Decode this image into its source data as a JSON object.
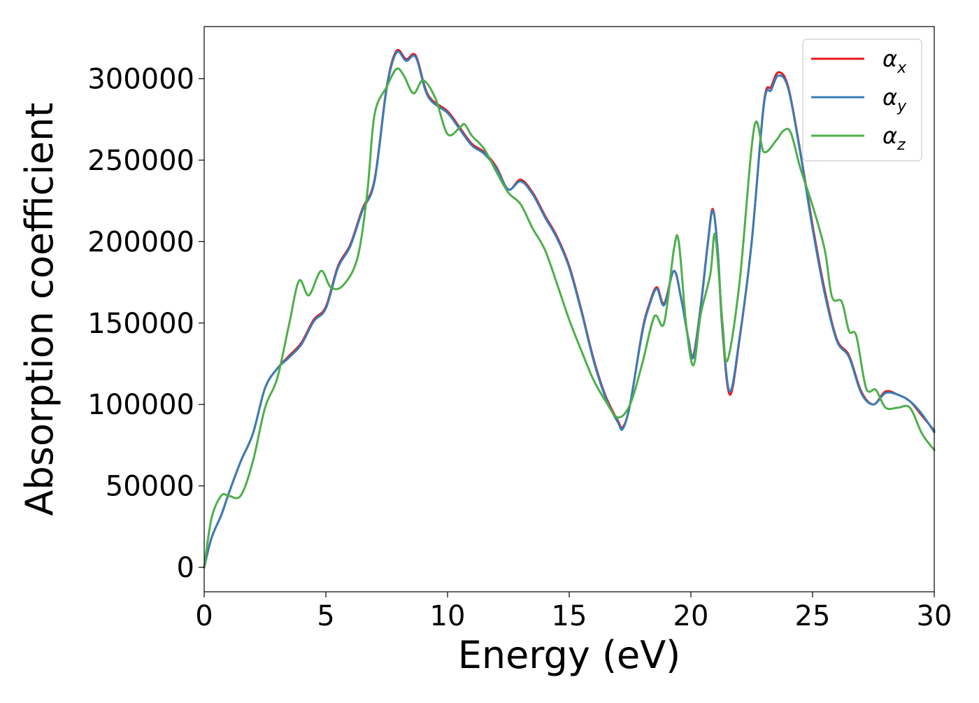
{
  "chart_data": {
    "type": "line",
    "title": "",
    "xlabel": "Energy (eV)",
    "ylabel": "Absorption coefficient",
    "xlim": [
      0,
      30
    ],
    "ylim": [
      -15000,
      332000
    ],
    "xticks": [
      0,
      5,
      10,
      15,
      20,
      25,
      30
    ],
    "yticks": [
      0,
      50000,
      100000,
      150000,
      200000,
      250000,
      300000
    ],
    "grid": false,
    "legend_position": "top-right",
    "series": [
      {
        "name": "αx",
        "name_base": "α",
        "name_sub": "x",
        "color": "#e41a1c",
        "points": [
          [
            0,
            0
          ],
          [
            0.3,
            18000
          ],
          [
            0.7,
            32000
          ],
          [
            1,
            45000
          ],
          [
            1.5,
            65000
          ],
          [
            2,
            82000
          ],
          [
            2.5,
            110000
          ],
          [
            3,
            122000
          ],
          [
            3.5,
            130000
          ],
          [
            4,
            138000
          ],
          [
            4.5,
            152000
          ],
          [
            5,
            160000
          ],
          [
            5.5,
            185000
          ],
          [
            6,
            198000
          ],
          [
            6.5,
            220000
          ],
          [
            7,
            238000
          ],
          [
            7.5,
            295000
          ],
          [
            7.9,
            317000
          ],
          [
            8.3,
            312000
          ],
          [
            8.7,
            314000
          ],
          [
            9.2,
            290000
          ],
          [
            10,
            280000
          ],
          [
            10.5,
            270000
          ],
          [
            11,
            260000
          ],
          [
            11.5,
            255000
          ],
          [
            12,
            246000
          ],
          [
            12.5,
            232000
          ],
          [
            13,
            238000
          ],
          [
            13.5,
            230000
          ],
          [
            14,
            216000
          ],
          [
            14.5,
            203000
          ],
          [
            15,
            185000
          ],
          [
            15.5,
            158000
          ],
          [
            16,
            128000
          ],
          [
            16.5,
            105000
          ],
          [
            17,
            90000
          ],
          [
            17.2,
            86000
          ],
          [
            17.5,
            100000
          ],
          [
            18,
            145000
          ],
          [
            18.3,
            162000
          ],
          [
            18.6,
            172000
          ],
          [
            18.9,
            162000
          ],
          [
            19.3,
            182000
          ],
          [
            19.6,
            165000
          ],
          [
            19.9,
            140000
          ],
          [
            20.1,
            130000
          ],
          [
            20.4,
            160000
          ],
          [
            20.7,
            200000
          ],
          [
            20.9,
            220000
          ],
          [
            21.1,
            195000
          ],
          [
            21.3,
            145000
          ],
          [
            21.6,
            106000
          ],
          [
            22,
            140000
          ],
          [
            22.5,
            200000
          ],
          [
            23,
            285000
          ],
          [
            23.3,
            295000
          ],
          [
            23.6,
            304000
          ],
          [
            24,
            295000
          ],
          [
            24.5,
            255000
          ],
          [
            25,
            210000
          ],
          [
            25.5,
            170000
          ],
          [
            26,
            140000
          ],
          [
            26.5,
            130000
          ],
          [
            27,
            108000
          ],
          [
            27.5,
            100000
          ],
          [
            28,
            108000
          ],
          [
            28.5,
            106000
          ],
          [
            29,
            102000
          ],
          [
            29.5,
            93000
          ],
          [
            30,
            84000
          ]
        ]
      },
      {
        "name": "αy",
        "name_base": "α",
        "name_sub": "y",
        "color": "#377eb8",
        "points": [
          [
            0,
            0
          ],
          [
            0.3,
            18000
          ],
          [
            0.7,
            32000
          ],
          [
            1,
            45000
          ],
          [
            1.5,
            65000
          ],
          [
            2,
            82000
          ],
          [
            2.5,
            110000
          ],
          [
            3,
            122000
          ],
          [
            3.5,
            129000
          ],
          [
            4,
            137000
          ],
          [
            4.5,
            151000
          ],
          [
            5,
            159000
          ],
          [
            5.5,
            184000
          ],
          [
            6,
            197000
          ],
          [
            6.5,
            219000
          ],
          [
            7,
            237000
          ],
          [
            7.5,
            294000
          ],
          [
            7.9,
            316000
          ],
          [
            8.3,
            311000
          ],
          [
            8.7,
            313000
          ],
          [
            9.2,
            289000
          ],
          [
            10,
            279000
          ],
          [
            10.5,
            269000
          ],
          [
            11,
            259000
          ],
          [
            11.5,
            254000
          ],
          [
            12,
            245000
          ],
          [
            12.5,
            232000
          ],
          [
            13,
            237000
          ],
          [
            13.5,
            229000
          ],
          [
            14,
            215000
          ],
          [
            14.5,
            202000
          ],
          [
            15,
            184000
          ],
          [
            15.5,
            157000
          ],
          [
            16,
            127000
          ],
          [
            16.5,
            104000
          ],
          [
            17,
            89000
          ],
          [
            17.2,
            85000
          ],
          [
            17.5,
            100000
          ],
          [
            18,
            144000
          ],
          [
            18.3,
            161000
          ],
          [
            18.6,
            171000
          ],
          [
            18.9,
            161000
          ],
          [
            19.3,
            182000
          ],
          [
            19.6,
            165000
          ],
          [
            19.9,
            140000
          ],
          [
            20.1,
            129000
          ],
          [
            20.4,
            159000
          ],
          [
            20.7,
            199000
          ],
          [
            20.9,
            219000
          ],
          [
            21.1,
            195000
          ],
          [
            21.3,
            146000
          ],
          [
            21.6,
            108000
          ],
          [
            22,
            141000
          ],
          [
            22.5,
            200000
          ],
          [
            23,
            284000
          ],
          [
            23.3,
            293000
          ],
          [
            23.6,
            302000
          ],
          [
            24,
            294000
          ],
          [
            24.5,
            254000
          ],
          [
            25,
            208000
          ],
          [
            25.5,
            168000
          ],
          [
            26,
            139000
          ],
          [
            26.5,
            129000
          ],
          [
            27,
            107000
          ],
          [
            27.5,
            100000
          ],
          [
            28,
            107000
          ],
          [
            28.5,
            106000
          ],
          [
            29,
            102000
          ],
          [
            29.5,
            94000
          ],
          [
            30,
            83000
          ]
        ]
      },
      {
        "name": "αz",
        "name_base": "α",
        "name_sub": "z",
        "color": "#4daf4a",
        "points": [
          [
            0,
            0
          ],
          [
            0.3,
            30000
          ],
          [
            0.7,
            44000
          ],
          [
            1,
            44000
          ],
          [
            1.5,
            44000
          ],
          [
            2,
            65000
          ],
          [
            2.5,
            98000
          ],
          [
            3,
            116000
          ],
          [
            3.5,
            150000
          ],
          [
            3.9,
            176000
          ],
          [
            4.3,
            167000
          ],
          [
            4.8,
            182000
          ],
          [
            5.2,
            172000
          ],
          [
            5.7,
            173000
          ],
          [
            6.3,
            190000
          ],
          [
            6.7,
            230000
          ],
          [
            7,
            278000
          ],
          [
            7.5,
            295000
          ],
          [
            7.9,
            306000
          ],
          [
            8.2,
            302000
          ],
          [
            8.6,
            291000
          ],
          [
            9,
            299000
          ],
          [
            9.5,
            288000
          ],
          [
            10,
            266000
          ],
          [
            10.5,
            270000
          ],
          [
            10.7,
            272000
          ],
          [
            11,
            265000
          ],
          [
            11.5,
            257000
          ],
          [
            12,
            243000
          ],
          [
            12.5,
            230000
          ],
          [
            13,
            223000
          ],
          [
            13.5,
            208000
          ],
          [
            14,
            195000
          ],
          [
            14.5,
            174000
          ],
          [
            15,
            152000
          ],
          [
            15.5,
            133000
          ],
          [
            16,
            115000
          ],
          [
            16.5,
            102000
          ],
          [
            17,
            92000
          ],
          [
            17.5,
            100000
          ],
          [
            18,
            125000
          ],
          [
            18.5,
            154000
          ],
          [
            18.9,
            150000
          ],
          [
            19.3,
            195000
          ],
          [
            19.5,
            200000
          ],
          [
            19.8,
            150000
          ],
          [
            20.1,
            124000
          ],
          [
            20.4,
            155000
          ],
          [
            20.8,
            180000
          ],
          [
            21,
            204000
          ],
          [
            21.3,
            150000
          ],
          [
            21.5,
            127000
          ],
          [
            22,
            175000
          ],
          [
            22.6,
            270000
          ],
          [
            23,
            255000
          ],
          [
            23.5,
            262000
          ],
          [
            23.8,
            268000
          ],
          [
            24.1,
            267000
          ],
          [
            24.5,
            245000
          ],
          [
            25,
            222000
          ],
          [
            25.5,
            195000
          ],
          [
            25.8,
            166000
          ],
          [
            26.2,
            163000
          ],
          [
            26.5,
            145000
          ],
          [
            26.8,
            142000
          ],
          [
            27.2,
            110000
          ],
          [
            27.6,
            109000
          ],
          [
            28,
            98000
          ],
          [
            28.5,
            98000
          ],
          [
            29,
            98000
          ],
          [
            29.5,
            82000
          ],
          [
            30,
            72000
          ]
        ]
      }
    ]
  }
}
